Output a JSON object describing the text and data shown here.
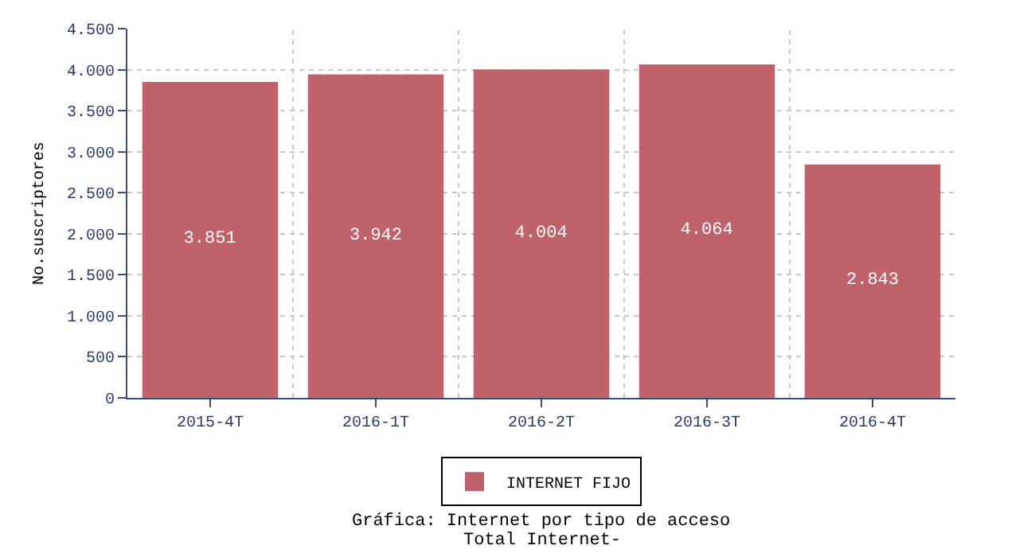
{
  "chart_data": {
    "type": "bar",
    "title": "Gráfica: Internet por tipo de acceso",
    "subtitle": "Total Internet-",
    "ylabel": "No.suscriptores",
    "categories": [
      "2015-4T",
      "2016-1T",
      "2016-2T",
      "2016-3T",
      "2016-4T"
    ],
    "series": [
      {
        "name": "INTERNET FIJO",
        "color": "#c0626b",
        "values": [
          3851,
          3942,
          4004,
          4064,
          2843
        ],
        "value_labels": [
          "3.851",
          "3.942",
          "4.004",
          "4.064",
          "2.843"
        ]
      }
    ],
    "ylim": [
      0,
      4500
    ],
    "yticks": [
      0,
      500,
      {
        "value": 1000,
        "label": "1.000"
      },
      {
        "value": 1500,
        "label": "1.500"
      },
      {
        "value": 2000,
        "label": "2.000"
      },
      {
        "value": 2500,
        "label": "2.500"
      },
      {
        "value": 3000,
        "label": "3.000"
      },
      {
        "value": 3500,
        "label": "3.500"
      },
      {
        "value": 4000,
        "label": "4.000"
      },
      {
        "value": 4500,
        "label": "4.500"
      }
    ],
    "grid": true,
    "legend": "bottom"
  }
}
